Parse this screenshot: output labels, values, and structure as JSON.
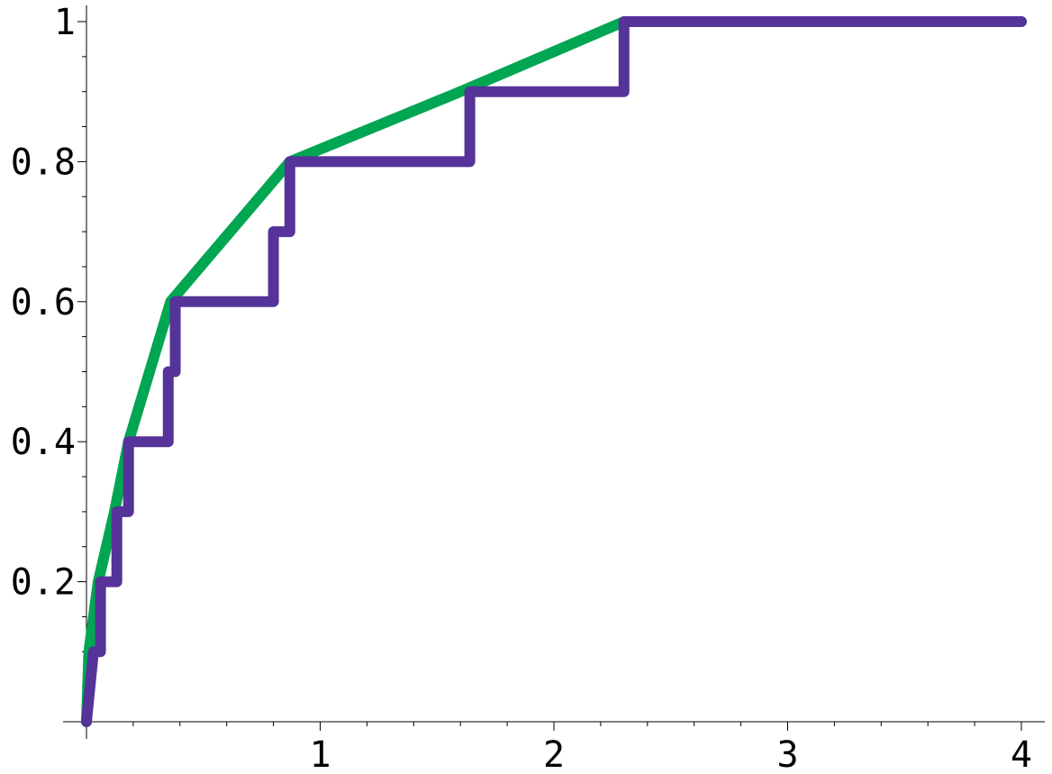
{
  "chart_data": {
    "type": "line",
    "title": "",
    "xlabel": "",
    "ylabel": "",
    "xlim": [
      0,
      4
    ],
    "ylim": [
      0,
      1
    ],
    "grid": false,
    "x_ticks": [
      {
        "value": 1,
        "label": "1"
      },
      {
        "value": 2,
        "label": "2"
      },
      {
        "value": 3,
        "label": "3"
      },
      {
        "value": 4,
        "label": "4"
      }
    ],
    "y_ticks": [
      {
        "value": 0.2,
        "label": "0.2"
      },
      {
        "value": 0.4,
        "label": "0.4"
      },
      {
        "value": 0.6,
        "label": "0.6"
      },
      {
        "value": 0.8,
        "label": "0.8"
      },
      {
        "value": 1,
        "label": "1"
      }
    ],
    "x_minor_step": 0.2,
    "y_minor_step": 0.05,
    "series": [
      {
        "color": "#00a651",
        "x": [
          0,
          0.01,
          0.05,
          0.12,
          0.18,
          0.36,
          0.87,
          1.6,
          2.3,
          4.0
        ],
        "y": [
          0,
          0.1,
          0.2,
          0.3,
          0.4,
          0.6,
          0.8,
          0.9,
          1.0,
          1.0
        ]
      },
      {
        "color": "#553399",
        "step": true,
        "x": [
          0,
          0.03,
          0.06,
          0.13,
          0.18,
          0.35,
          0.38,
          0.8,
          0.87,
          1.64,
          2.3,
          4.0
        ],
        "y": [
          0,
          0.1,
          0.2,
          0.3,
          0.4,
          0.5,
          0.6,
          0.7,
          0.8,
          0.9,
          1.0,
          1.0
        ]
      }
    ]
  }
}
